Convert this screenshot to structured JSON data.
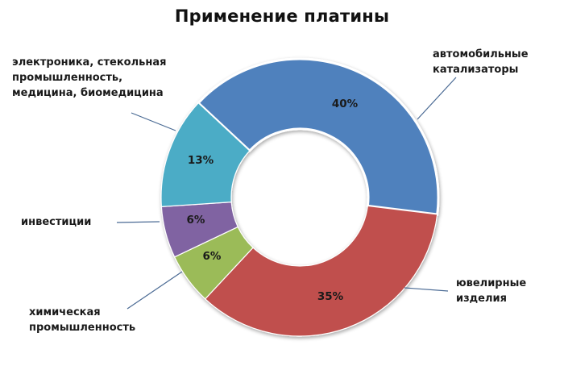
{
  "chart_data": {
    "type": "pie",
    "variant": "donut",
    "title": "Применение платины",
    "categories": [
      "автомобильные катализаторы",
      "ювелирные изделия",
      "химическая промышленность",
      "инвестиции",
      "электроника, стекольная промышленность, медицина, биомедицина"
    ],
    "values": [
      40,
      35,
      6,
      6,
      13
    ],
    "value_labels": [
      "40%",
      "35%",
      "6%",
      "6%",
      "13%"
    ],
    "colors": [
      "#4f81bd",
      "#c0504d",
      "#9bbb59",
      "#8064a2",
      "#4bacc6"
    ],
    "legend": "none (data labels with leader lines)",
    "xlabel": "",
    "ylabel": ""
  },
  "labels": {
    "auto": [
      "автомобильные",
      "катализаторы"
    ],
    "jewel": [
      "ювелирные",
      "изделия"
    ],
    "chem": [
      "химическая",
      "промышленность"
    ],
    "invest": [
      "инвестиции"
    ],
    "electro": [
      "электроника, стекольная",
      "промышленность,",
      "медицина, биомедицина"
    ]
  }
}
